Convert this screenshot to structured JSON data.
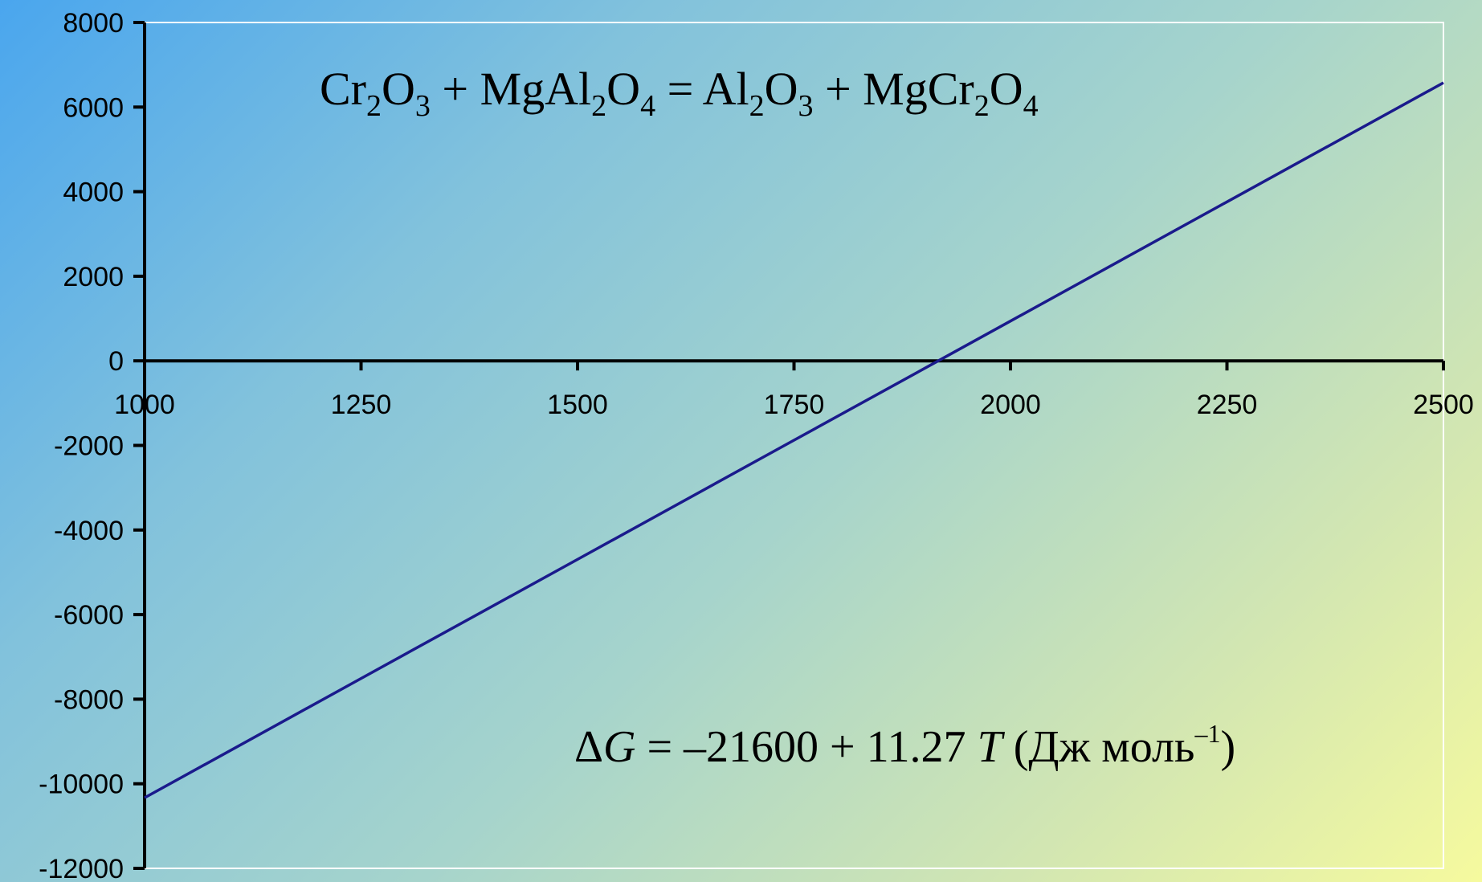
{
  "chart_data": {
    "type": "line",
    "title": "",
    "xlabel": "",
    "ylabel": "",
    "xlim": [
      1000,
      2500
    ],
    "ylim": [
      -12000,
      8000
    ],
    "x_ticks": [
      1000,
      1250,
      1500,
      1750,
      2000,
      2250,
      2500
    ],
    "x_tick_labels": [
      "1000",
      "1250",
      "1500",
      "1750",
      "2000",
      "2250",
      "2500"
    ],
    "y_ticks": [
      8000,
      6000,
      4000,
      2000,
      0,
      -2000,
      -4000,
      -6000,
      -8000,
      -10000,
      -12000
    ],
    "y_tick_labels": [
      "8000",
      "6000",
      "4000",
      "2000",
      "0",
      "-2000",
      "-4000",
      "-6000",
      "-8000",
      "-10000",
      "-12000"
    ],
    "grid": false,
    "series": [
      {
        "color": "#1a1a8c",
        "x": [
          1000,
          1250,
          1500,
          1750,
          1916.6,
          2000,
          2250,
          2500
        ],
        "y": [
          -10330,
          -7510,
          -4695,
          -1877,
          0,
          940,
          3758,
          6575
        ]
      }
    ],
    "annotations": {
      "reaction": {
        "parts": [
          {
            "t": "Cr",
            "sub": false
          },
          {
            "t": "2",
            "sub": true
          },
          {
            "t": "O",
            "sub": false
          },
          {
            "t": "3",
            "sub": true
          },
          {
            "t": " + MgAl",
            "sub": false
          },
          {
            "t": "2",
            "sub": true
          },
          {
            "t": "O",
            "sub": false
          },
          {
            "t": "4",
            "sub": true
          },
          {
            "t": " = Al",
            "sub": false
          },
          {
            "t": "2",
            "sub": true
          },
          {
            "t": "O",
            "sub": false
          },
          {
            "t": "3",
            "sub": true
          },
          {
            "t": " + MgCr",
            "sub": false
          },
          {
            "t": "2",
            "sub": true
          },
          {
            "t": "O",
            "sub": false
          },
          {
            "t": "4",
            "sub": true
          }
        ]
      },
      "equation": {
        "delta": "Δ",
        "g": "G",
        "middle": " = –21600 + 11.27 ",
        "t": "T",
        "unit": " (Дж моль",
        "sup": "–1",
        "close": ")"
      }
    }
  }
}
